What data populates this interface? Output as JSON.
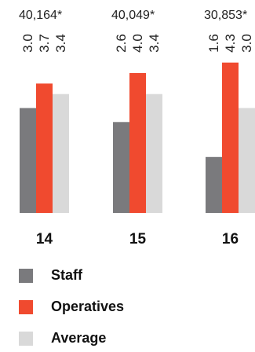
{
  "chart_data": {
    "type": "bar",
    "categories": [
      "14",
      "15",
      "16"
    ],
    "totals": [
      "40,164*",
      "40,049*",
      "30,853*"
    ],
    "series": [
      {
        "name": "Staff",
        "color": "#7a7a7d",
        "values": [
          3.0,
          2.6,
          1.6
        ]
      },
      {
        "name": "Operatives",
        "color": "#f04a2f",
        "values": [
          3.7,
          4.0,
          4.3
        ]
      },
      {
        "name": "Average",
        "color": "#d9d9d9",
        "values": [
          3.4,
          3.4,
          3.0
        ]
      }
    ],
    "value_labels": [
      [
        "3.0",
        "2.6",
        "1.6"
      ],
      [
        "3.7",
        "4.0",
        "4.3"
      ],
      [
        "3.4",
        "3.4",
        "3.0"
      ]
    ],
    "ylim": [
      0,
      4.5
    ],
    "grid": false,
    "legend_position": "bottom-left"
  }
}
